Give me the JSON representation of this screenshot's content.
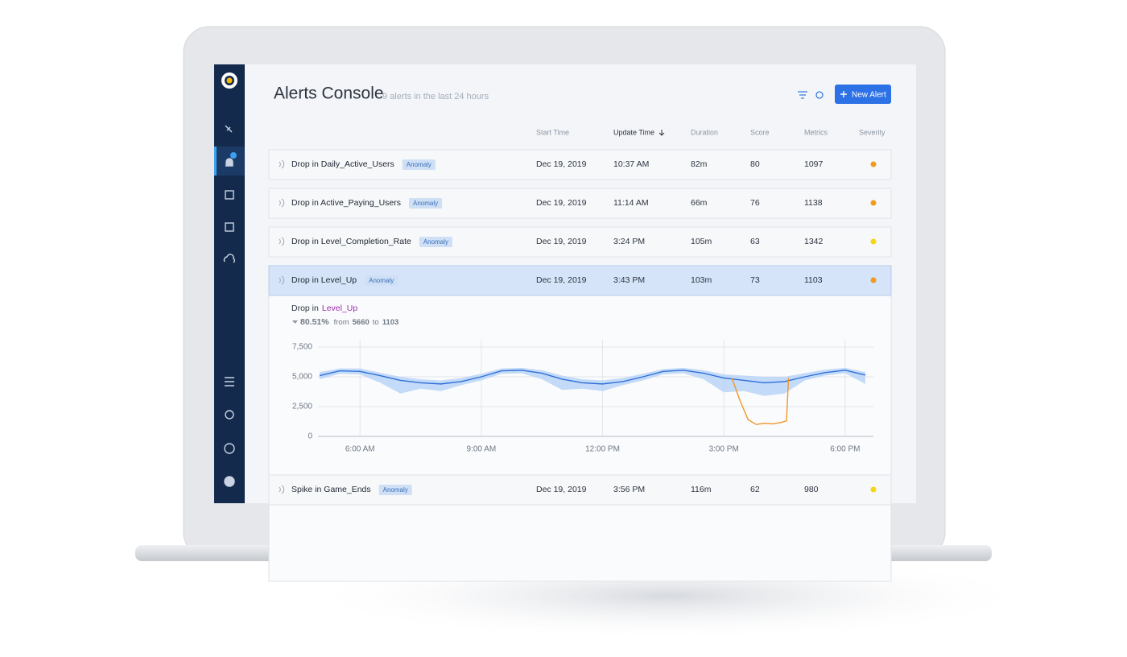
{
  "header": {
    "title": "Alerts Console",
    "subtitle": "9 alerts in the last 24 hours",
    "button": "New Alert"
  },
  "table": {
    "columns": [
      "Start Time",
      "Update Time",
      "Duration",
      "Score",
      "Metrics",
      "Severity"
    ],
    "rows": [
      {
        "name": "Drop in Daily_Active_Users",
        "tag": "Anomaly",
        "start": "Dec 19, 2019",
        "update": "10:37 AM",
        "duration": "82m",
        "score": "80",
        "metrics": "1097",
        "severity_color": "#f39a1e"
      },
      {
        "name": "Drop in Active_Paying_Users",
        "tag": "Anomaly",
        "start": "Dec 19, 2019",
        "update": "11:14 AM",
        "duration": "66m",
        "score": "76",
        "metrics": "1138",
        "severity_color": "#f39a1e"
      },
      {
        "name": "Drop in Level_Completion_Rate",
        "tag": "Anomaly",
        "start": "Dec 19, 2019",
        "update": "3:24 PM",
        "duration": "105m",
        "score": "63",
        "metrics": "1342",
        "severity_color": "#f5d614"
      },
      {
        "name": "Drop in Level_Up",
        "tag": "Anomaly",
        "start": "Dec 19, 2019",
        "update": "3:43 PM",
        "duration": "103m",
        "score": "73",
        "metrics": "1103",
        "severity_color": "#f39a1e",
        "detail": {
          "prefix": "Drop in",
          "metric": "Level_Up",
          "change": "80.51%",
          "from_word": "from",
          "from": "5660",
          "to_word": "to",
          "to": "1103"
        }
      },
      {
        "name": "Spike in Game_Ends",
        "tag": "Anomaly",
        "start": "Dec 19, 2019",
        "update": "3:56 PM",
        "duration": "116m",
        "score": "62",
        "metrics": "980",
        "severity_color": "#f5d614"
      }
    ]
  },
  "chart_data": {
    "type": "line",
    "x": [
      5.0,
      5.5,
      6.0,
      6.5,
      7.0,
      7.5,
      8.0,
      8.5,
      9.0,
      9.5,
      10.0,
      10.5,
      11.0,
      11.5,
      12.0,
      12.5,
      13.0,
      13.5,
      14.0,
      14.5,
      15.0,
      15.5,
      16.0,
      16.5,
      17.0,
      17.5,
      18.0,
      18.5
    ],
    "band": {
      "color": "#b9d4f7",
      "lower": [
        4800,
        5250,
        5200,
        4500,
        3600,
        4000,
        3800,
        4300,
        4700,
        5250,
        5300,
        4800,
        3900,
        4000,
        3800,
        4300,
        4700,
        5200,
        5300,
        4800,
        3700,
        3800,
        3400,
        3600,
        4700,
        5100,
        5300,
        4400
      ],
      "upper": [
        5400,
        5700,
        5700,
        5350,
        5000,
        4800,
        4700,
        4900,
        5250,
        5700,
        5750,
        5550,
        5100,
        4800,
        4700,
        4900,
        5250,
        5650,
        5750,
        5550,
        5200,
        5100,
        5000,
        5000,
        5300,
        5600,
        5750,
        5400
      ]
    },
    "series": [
      {
        "color": "#2f6fd8",
        "values": [
          5100,
          5500,
          5450,
          5100,
          4700,
          4500,
          4400,
          4600,
          5000,
          5500,
          5550,
          5300,
          4800,
          4500,
          4400,
          4600,
          5000,
          5450,
          5550,
          5300,
          4900,
          4700,
          4500,
          4600,
          5000,
          5350,
          5550,
          5150
        ]
      },
      {
        "color": "#f0962a",
        "x": [
          15.2,
          15.4,
          15.6,
          15.8,
          16.0,
          16.2,
          16.4,
          16.55,
          16.6
        ],
        "values": [
          4900,
          3000,
          1400,
          1000,
          1100,
          1050,
          1150,
          1300,
          4900
        ]
      }
    ],
    "xlim": [
      4.96,
      18.7
    ],
    "ylim": [
      0,
      7500
    ],
    "xticks": [
      {
        "value": 6,
        "label": "6:00 AM"
      },
      {
        "value": 9,
        "label": "9:00 AM"
      },
      {
        "value": 12,
        "label": "12:00 PM"
      },
      {
        "value": 15,
        "label": "3:00 PM"
      },
      {
        "value": 18,
        "label": "6:00 PM"
      }
    ],
    "yticks": [
      0,
      {
        "value": 2500,
        "label": "2,500"
      },
      {
        "value": 5000,
        "label": "5,000"
      },
      {
        "value": 7500,
        "label": "7,500"
      }
    ],
    "grid": true
  }
}
